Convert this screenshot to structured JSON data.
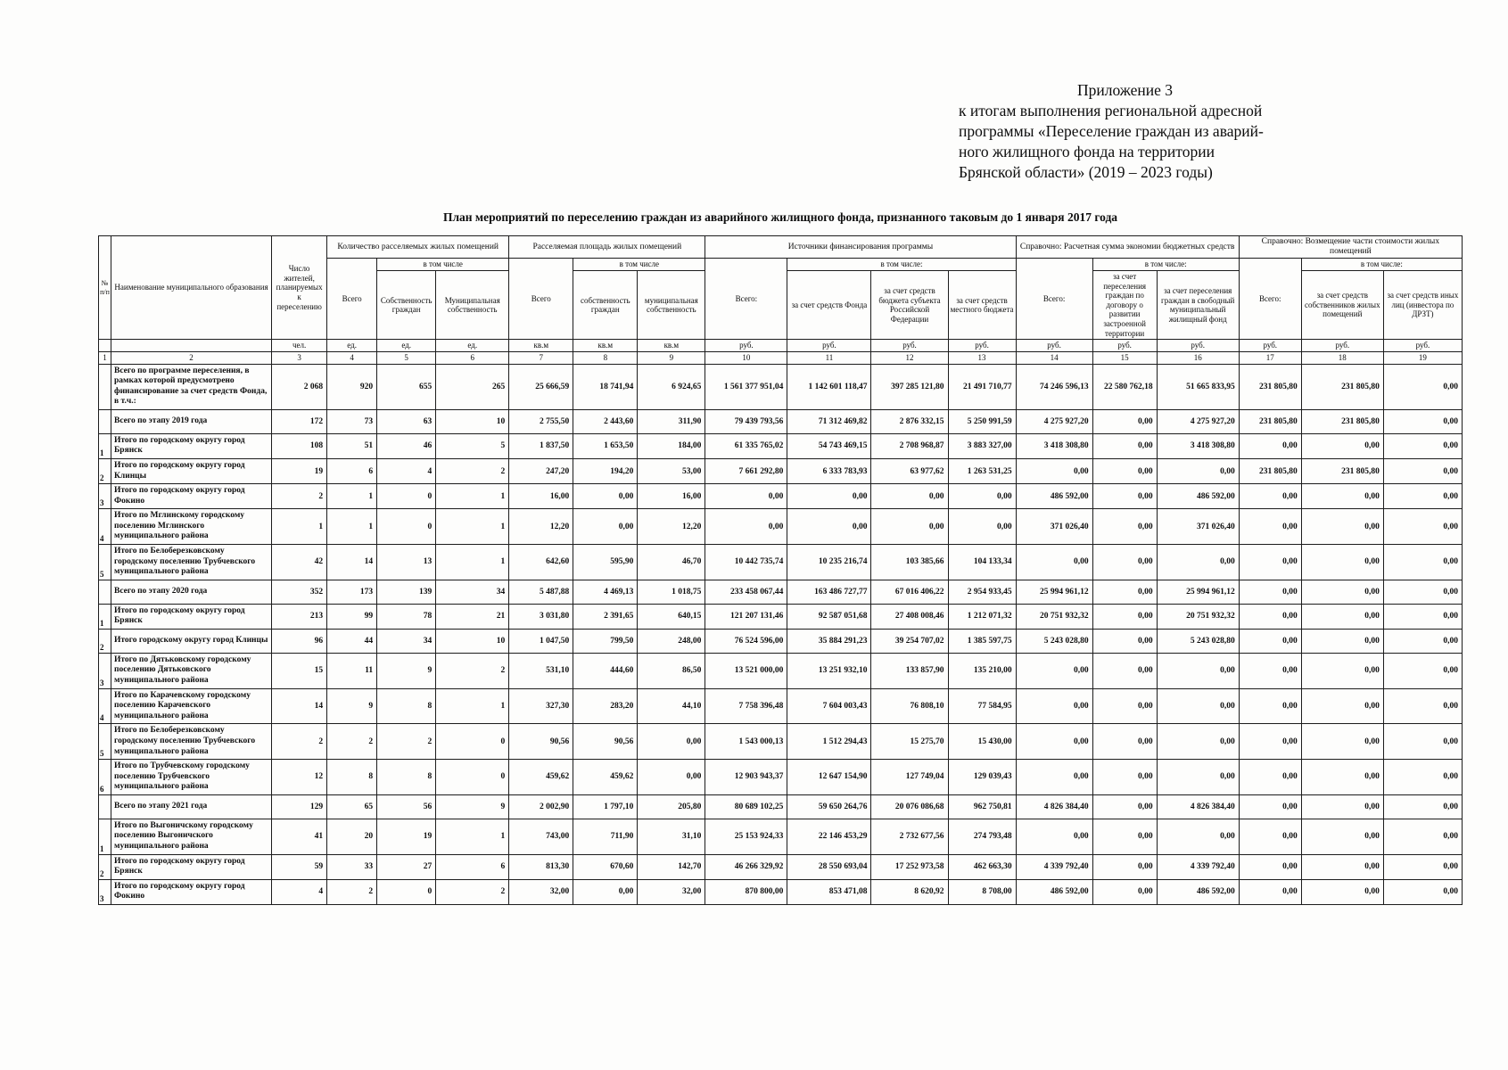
{
  "page": {
    "appendix_lines": [
      "Приложение 3",
      "к итогам выполнения региональной адресной",
      "программы «Переселение граждан из аварий-",
      "ного жилищного фонда на территории",
      "Брянской области» (2019 – 2023 годы)"
    ],
    "table_title": "План мероприятий по переселению граждан из аварийного жилищного фонда, признанного таковым до 1 января 2017 года"
  },
  "table": {
    "headers": {
      "num": "№ п/п",
      "name": "Наименование муниципального образования",
      "residents": "Число жителей, планируемых к переселению",
      "g_premises": "Количество расселяемых жилых помещений",
      "g_area": "Расселяемая площадь жилых помещений",
      "g_sources": "Источники финансирования программы",
      "g_ref1": "Справочно: Расчетная сумма экономии бюджетных средств",
      "g_ref2": "Справочно: Возмещение части стоимости жилых помещений",
      "in_tom_chisle": "в том числе",
      "in_tom_chisle_c": "в том числе:",
      "vsego": "Всего",
      "vsego_c": "Всего:",
      "own_citizens": "Собственность граждан",
      "mun_own": "Муниципальная собственность",
      "own_citizens_lc": "собственность граждан",
      "mun_own_lc": "муниципальная собственность",
      "fund": "за счет средств Фонда",
      "subject_budget": "за счет средств бюджета субъекта Российской Федерации",
      "local_budget": "за счет средств местного бюджета",
      "dev_agreement": "за счет переселения граждан по договору о развитии застроенной территории",
      "free_fund": "за счет переселения граждан в свободный муниципальный жилищный фонд",
      "owners_funds": "за счет средств собственников жилых помещений",
      "other_funds": "за счет средств иных лиц (инвестора по ДРЗТ)"
    },
    "units": [
      "чел.",
      "ед.",
      "ед.",
      "ед.",
      "кв.м",
      "кв.м",
      "кв.м",
      "руб.",
      "руб.",
      "руб.",
      "руб.",
      "руб.",
      "руб.",
      "руб.",
      "руб.",
      "руб.",
      "руб."
    ],
    "col_numbers": [
      "1",
      "2",
      "3",
      "4",
      "5",
      "6",
      "7",
      "8",
      "9",
      "10",
      "11",
      "12",
      "13",
      "14",
      "15",
      "16",
      "17",
      "18",
      "19"
    ],
    "rows": [
      {
        "num": "",
        "name": "Всего по  программе переселения, в рамках которой предусмотрено финансирование за счет средств Фонда, в т.ч.:",
        "values": [
          "2 068",
          "920",
          "655",
          "265",
          "25 666,59",
          "18 741,94",
          "6 924,65",
          "1 561 377 951,04",
          "1 142 601 118,47",
          "397 285 121,80",
          "21 491 710,77",
          "74 246 596,13",
          "22 580 762,18",
          "51 665 833,95",
          "231 805,80",
          "231 805,80",
          "0,00"
        ]
      },
      {
        "num": "",
        "name": "Всего по этапу 2019 года",
        "values": [
          "172",
          "73",
          "63",
          "10",
          "2 755,50",
          "2 443,60",
          "311,90",
          "79 439 793,56",
          "71 312 469,82",
          "2 876 332,15",
          "5 250 991,59",
          "4 275 927,20",
          "0,00",
          "4 275 927,20",
          "231 805,80",
          "231 805,80",
          "0,00"
        ]
      },
      {
        "num": "1",
        "name": "Итого по городскому округу город Брянск",
        "values": [
          "108",
          "51",
          "46",
          "5",
          "1 837,50",
          "1 653,50",
          "184,00",
          "61 335 765,02",
          "54 743 469,15",
          "2 708 968,87",
          "3 883 327,00",
          "3 418 308,80",
          "0,00",
          "3 418 308,80",
          "0,00",
          "0,00",
          "0,00"
        ]
      },
      {
        "num": "2",
        "name": "Итого по городскому округу город Клинцы",
        "values": [
          "19",
          "6",
          "4",
          "2",
          "247,20",
          "194,20",
          "53,00",
          "7 661 292,80",
          "6 333 783,93",
          "63 977,62",
          "1 263 531,25",
          "0,00",
          "0,00",
          "0,00",
          "231 805,80",
          "231 805,80",
          "0,00"
        ]
      },
      {
        "num": "3",
        "name": "Итого по городскому округу город Фокино",
        "values": [
          "2",
          "1",
          "0",
          "1",
          "16,00",
          "0,00",
          "16,00",
          "0,00",
          "0,00",
          "0,00",
          "0,00",
          "486 592,00",
          "0,00",
          "486 592,00",
          "0,00",
          "0,00",
          "0,00"
        ]
      },
      {
        "num": "4",
        "name": "Итого по Мглинскому городскому поселению Мглинского муниципального района",
        "values": [
          "1",
          "1",
          "0",
          "1",
          "12,20",
          "0,00",
          "12,20",
          "0,00",
          "0,00",
          "0,00",
          "0,00",
          "371 026,40",
          "0,00",
          "371 026,40",
          "0,00",
          "0,00",
          "0,00"
        ]
      },
      {
        "num": "5",
        "name": "Итого по Белоберезковскому городскому поселению Трубчевского муниципального района",
        "values": [
          "42",
          "14",
          "13",
          "1",
          "642,60",
          "595,90",
          "46,70",
          "10 442 735,74",
          "10 235 216,74",
          "103 385,66",
          "104 133,34",
          "0,00",
          "0,00",
          "0,00",
          "0,00",
          "0,00",
          "0,00"
        ]
      },
      {
        "num": "",
        "name": "Всего по этапу 2020 года",
        "values": [
          "352",
          "173",
          "139",
          "34",
          "5 487,88",
          "4 469,13",
          "1 018,75",
          "233 458 067,44",
          "163 486 727,77",
          "67 016 406,22",
          "2 954 933,45",
          "25 994 961,12",
          "0,00",
          "25 994 961,12",
          "0,00",
          "0,00",
          "0,00"
        ]
      },
      {
        "num": "1",
        "name": "Итого по городскому округу город Брянск",
        "values": [
          "213",
          "99",
          "78",
          "21",
          "3 031,80",
          "2 391,65",
          "640,15",
          "121 207 131,46",
          "92 587 051,68",
          "27 408 008,46",
          "1 212 071,32",
          "20 751 932,32",
          "0,00",
          "20 751 932,32",
          "0,00",
          "0,00",
          "0,00"
        ]
      },
      {
        "num": "2",
        "name": "Итого городскому округу город Клинцы",
        "values": [
          "96",
          "44",
          "34",
          "10",
          "1 047,50",
          "799,50",
          "248,00",
          "76 524 596,00",
          "35 884 291,23",
          "39 254 707,02",
          "1 385 597,75",
          "5 243 028,80",
          "0,00",
          "5 243 028,80",
          "0,00",
          "0,00",
          "0,00"
        ]
      },
      {
        "num": "3",
        "name": "Итого по Дятьковскому городскому поселению Дятьковского муниципального района",
        "values": [
          "15",
          "11",
          "9",
          "2",
          "531,10",
          "444,60",
          "86,50",
          "13 521 000,00",
          "13 251 932,10",
          "133 857,90",
          "135 210,00",
          "0,00",
          "0,00",
          "0,00",
          "0,00",
          "0,00",
          "0,00"
        ]
      },
      {
        "num": "4",
        "name": "Итого по Карачевскому городскому поселению Карачевского муниципального района",
        "values": [
          "14",
          "9",
          "8",
          "1",
          "327,30",
          "283,20",
          "44,10",
          "7 758 396,48",
          "7 604 003,43",
          "76 808,10",
          "77 584,95",
          "0,00",
          "0,00",
          "0,00",
          "0,00",
          "0,00",
          "0,00"
        ]
      },
      {
        "num": "5",
        "name": "Итого по Белоберезковскому городскому поселению Трубчевского муниципального района",
        "values": [
          "2",
          "2",
          "2",
          "0",
          "90,56",
          "90,56",
          "0,00",
          "1 543 000,13",
          "1 512 294,43",
          "15 275,70",
          "15 430,00",
          "0,00",
          "0,00",
          "0,00",
          "0,00",
          "0,00",
          "0,00"
        ]
      },
      {
        "num": "6",
        "name": "Итого по Трубчевскому городскому поселению Трубчевского муниципального района",
        "values": [
          "12",
          "8",
          "8",
          "0",
          "459,62",
          "459,62",
          "0,00",
          "12 903 943,37",
          "12 647 154,90",
          "127 749,04",
          "129 039,43",
          "0,00",
          "0,00",
          "0,00",
          "0,00",
          "0,00",
          "0,00"
        ]
      },
      {
        "num": "",
        "name": "Всего по этапу 2021 года",
        "values": [
          "129",
          "65",
          "56",
          "9",
          "2 002,90",
          "1 797,10",
          "205,80",
          "80 689 102,25",
          "59 650 264,76",
          "20 076 086,68",
          "962 750,81",
          "4 826 384,40",
          "0,00",
          "4 826 384,40",
          "0,00",
          "0,00",
          "0,00"
        ]
      },
      {
        "num": "1",
        "name": "Итого по Выгоничскому городскому поселению Выгоничского муниципального района",
        "values": [
          "41",
          "20",
          "19",
          "1",
          "743,00",
          "711,90",
          "31,10",
          "25 153 924,33",
          "22 146 453,29",
          "2 732 677,56",
          "274 793,48",
          "0,00",
          "0,00",
          "0,00",
          "0,00",
          "0,00",
          "0,00"
        ]
      },
      {
        "num": "2",
        "name": "Итого по городскому округу город Брянск",
        "values": [
          "59",
          "33",
          "27",
          "6",
          "813,30",
          "670,60",
          "142,70",
          "46 266 329,92",
          "28 550 693,04",
          "17 252 973,58",
          "462 663,30",
          "4 339 792,40",
          "0,00",
          "4 339 792,40",
          "0,00",
          "0,00",
          "0,00"
        ]
      },
      {
        "num": "3",
        "name": "Итого по городскому округу город Фокино",
        "values": [
          "4",
          "2",
          "0",
          "2",
          "32,00",
          "0,00",
          "32,00",
          "870 800,00",
          "853 471,08",
          "8 620,92",
          "8 708,00",
          "486 592,00",
          "0,00",
          "486 592,00",
          "0,00",
          "0,00",
          "0,00"
        ]
      }
    ]
  }
}
